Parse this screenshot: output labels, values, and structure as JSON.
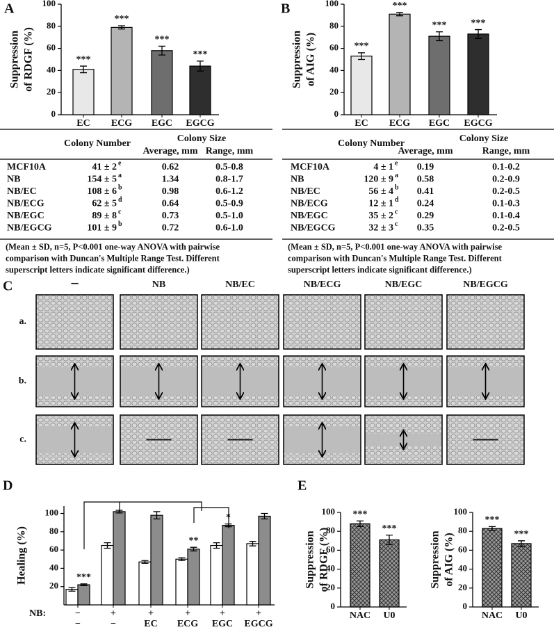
{
  "chart_data": [
    {
      "type": "bar",
      "y_label": [
        "Suppression",
        "of RDGF (%)"
      ],
      "categories": [
        "EC",
        "ECG",
        "EGC",
        "EGCG"
      ],
      "values": [
        41,
        79,
        58,
        44
      ],
      "errors": [
        3,
        1.5,
        4,
        4.5
      ],
      "colors": [
        "#e8e8e8",
        "#b4b4b4",
        "#6e6e6e",
        "#2e2e2e"
      ],
      "annotations": [
        "***",
        "***",
        "***",
        "***"
      ],
      "ylim": [
        0,
        100
      ],
      "yticks": [
        0,
        20,
        40,
        60,
        80,
        100
      ]
    },
    {
      "type": "bar",
      "y_label": [
        "Suppression",
        "of AIG (%)"
      ],
      "categories": [
        "EC",
        "ECG",
        "EGC",
        "EGCG"
      ],
      "values": [
        53,
        91,
        71,
        73
      ],
      "errors": [
        3,
        1.5,
        4,
        4
      ],
      "colors": [
        "#e8e8e8",
        "#b4b4b4",
        "#6e6e6e",
        "#2e2e2e"
      ],
      "annotations": [
        "***",
        "***",
        "***",
        "***"
      ],
      "ylim": [
        0,
        100
      ],
      "yticks": [
        0,
        20,
        40,
        60,
        80,
        100
      ]
    },
    {
      "type": "bar",
      "y_label": [
        "Healing (%)"
      ],
      "category_label": "NB:",
      "categories": [
        "−",
        "+",
        "+",
        "+",
        "+",
        "+"
      ],
      "categories2": [
        "−",
        "−",
        "EC",
        "ECG",
        "EGC",
        "EGCG"
      ],
      "series": [
        {
          "color": "#ffffff",
          "values": [
            17,
            65,
            47,
            50,
            65,
            67
          ],
          "errors": [
            2,
            3,
            1.5,
            1.5,
            3,
            2.5
          ],
          "annotations": [
            null,
            null,
            null,
            null,
            null,
            null
          ]
        },
        {
          "color": "#8c8c8c",
          "values": [
            22,
            102,
            98,
            61,
            87,
            97
          ],
          "errors": [
            1,
            1.5,
            4,
            2,
            1.5,
            3
          ],
          "annotations": [
            "***",
            null,
            null,
            "**",
            "*",
            null
          ]
        }
      ],
      "ylim": [
        0,
        108
      ],
      "yticks": [
        20,
        40,
        60,
        80,
        100
      ]
    },
    {
      "type": "bar",
      "y_label": [
        "Suppression",
        "of RDGF (%)"
      ],
      "categories": [
        "NAC",
        "U0"
      ],
      "values": [
        88,
        71
      ],
      "errors": [
        3,
        5
      ],
      "colors": [
        "#8a8a8a",
        "#8a8a8a"
      ],
      "fill": "crosshatch",
      "annotations": [
        "***",
        "***"
      ],
      "ylim": [
        0,
        100
      ],
      "yticks": [
        0,
        20,
        40,
        60,
        80,
        100
      ]
    },
    {
      "type": "bar",
      "y_label": [
        "Suppression",
        "of AIG (%)"
      ],
      "categories": [
        "NAC",
        "U0"
      ],
      "values": [
        83,
        67
      ],
      "errors": [
        2,
        3
      ],
      "colors": [
        "#8a8a8a",
        "#8a8a8a"
      ],
      "fill": "crosshatch",
      "annotations": [
        "***",
        "***"
      ],
      "ylim": [
        0,
        100
      ],
      "yticks": [
        0,
        20,
        40,
        60,
        80,
        100
      ]
    }
  ],
  "panel_labels": [
    "A",
    "B",
    "C",
    "D",
    "E"
  ],
  "tables": [
    {
      "header": {
        "number": "Colony Number",
        "size": "Colony Size",
        "average": "Average, mm",
        "range": "Range, mm"
      },
      "rows": [
        [
          "MCF10A",
          "41 ± 2",
          "e",
          "0.62",
          "0.5-0.8"
        ],
        [
          "NB",
          "154 ± 5",
          "a",
          "1.34",
          "0.8-1.7"
        ],
        [
          "NB/EC",
          "108 ± 6",
          "b",
          "0.98",
          "0.6-1.2"
        ],
        [
          "NB/ECG",
          "62 ± 5",
          "d",
          "0.64",
          "0.5-0.9"
        ],
        [
          "NB/EGC",
          "89 ± 8",
          "c",
          "0.73",
          "0.5-1.0"
        ],
        [
          "NB/EGCG",
          "101 ± 9",
          "b",
          "0.72",
          "0.6-1.0"
        ]
      ],
      "note": [
        "(Mean ± SD, n=5, P<0.001 one-way ANOVA with pairwise",
        "comparison with Duncan's Multiple Range Test. Different",
        "superscript letters indicate significant difference.)"
      ]
    },
    {
      "header": {
        "number": "Colony Number",
        "size": "Colony Size",
        "average": "Average, mm",
        "range": "Range, mm"
      },
      "rows": [
        [
          "MCF10A",
          "4 ± 1",
          "e",
          "0.19",
          "0.1-0.2"
        ],
        [
          "NB",
          "120 ± 9",
          "a",
          "0.58",
          "0.2-0.9"
        ],
        [
          "NB/EC",
          "56 ± 4",
          "b",
          "0.41",
          "0.2-0.5"
        ],
        [
          "NB/ECG",
          "12 ± 1",
          "d",
          "0.24",
          "0.1-0.3"
        ],
        [
          "NB/EGC",
          "35 ± 2",
          "c",
          "0.29",
          "0.1-0.4"
        ],
        [
          "NB/EGCG",
          "32 ± 3",
          "c",
          "0.35",
          "0.2-0.5"
        ]
      ],
      "note": [
        "(Mean ± SD, n=5, P<0.001 one-way ANOVA with pairwise",
        "comparison with Duncan's Multiple Range Test. Different",
        "superscript letters indicate significant difference.)"
      ]
    }
  ],
  "panel_c": {
    "columns": [
      "−",
      "NB",
      "NB/EC",
      "NB/ECG",
      "NB/EGC",
      "NB/EGCG"
    ],
    "rows": [
      "a.",
      "b.",
      "c."
    ]
  }
}
